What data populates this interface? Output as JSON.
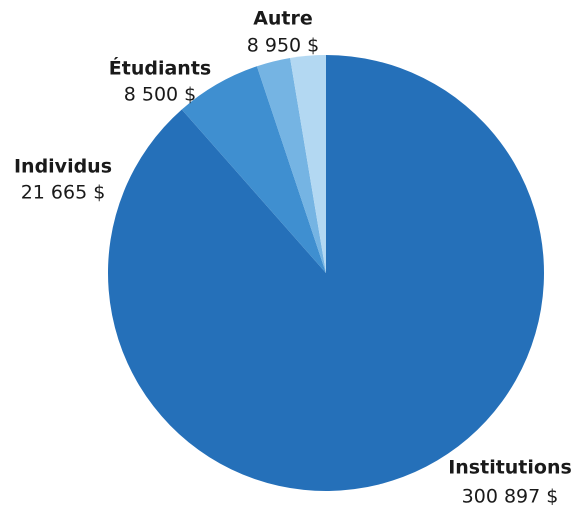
{
  "chart_data": {
    "type": "pie",
    "categories": [
      "Institutions",
      "Individus",
      "Étudiants",
      "Autre"
    ],
    "values": [
      300897,
      21665,
      8500,
      8950
    ],
    "value_labels": [
      "300 897 $",
      "21 665 $",
      "8 500 $",
      "8 950 $"
    ],
    "colors": [
      "#2570b9",
      "#3f8fd0",
      "#75b4e3",
      "#b3d8f2"
    ]
  }
}
